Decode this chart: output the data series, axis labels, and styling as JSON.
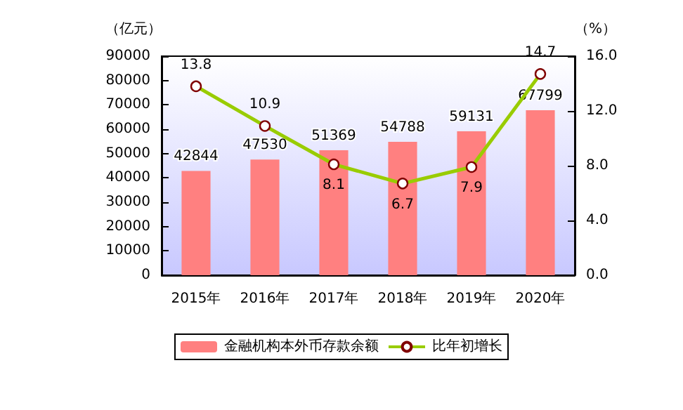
{
  "chart_data": {
    "type": "bar",
    "ylabel": "（亿元）",
    "y2label": "（%）",
    "categories": [
      "2015年",
      "2016年",
      "2017年",
      "2018年",
      "2019年",
      "2020年"
    ],
    "series": [
      {
        "name": "金融机构本外币存款余额",
        "color": "#ff8080",
        "values": [
          42844,
          47530,
          51369,
          54788,
          59131,
          67799
        ]
      },
      {
        "name": "比年初增长",
        "type": "line",
        "axis": "y2",
        "color": "#99cc00",
        "marker": "circle",
        "values": [
          13.8,
          10.9,
          8.1,
          6.7,
          7.9,
          14.7
        ]
      }
    ],
    "ylim": [
      0,
      90000
    ],
    "yticks": [
      0,
      10000,
      20000,
      30000,
      40000,
      50000,
      60000,
      70000,
      80000,
      90000
    ],
    "y2lim": [
      0,
      16
    ],
    "y2ticks": [
      {
        "value": 0,
        "label": "0.0"
      },
      {
        "value": 4,
        "label": "4.0"
      },
      {
        "value": 8,
        "label": "8.0"
      },
      {
        "value": 12,
        "label": "12.0"
      },
      {
        "value": 16,
        "label": "16.0"
      }
    ],
    "data_labels": true,
    "legend": "bottom",
    "grid": false
  }
}
